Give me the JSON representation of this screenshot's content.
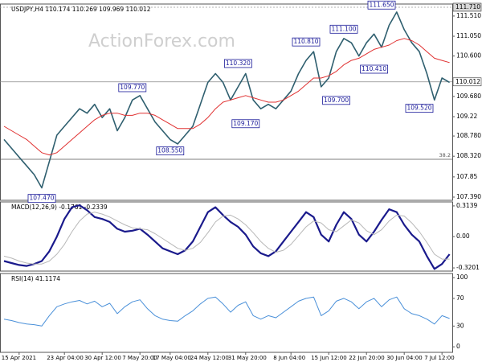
{
  "chart_data": [
    {
      "type": "line",
      "title": "USDJPY,H4  110.174 110.269 109.969 110.012",
      "watermark": "ActionForex.com",
      "categories": [
        null,
        null,
        "15 Apr 2021",
        null,
        null,
        null,
        null,
        null,
        "23 Apr 04:00",
        null,
        null,
        null,
        null,
        "30 Apr 12:00",
        null,
        null,
        null,
        null,
        "7 May 20:00",
        null,
        null,
        null,
        "17 May 04:00",
        null,
        null,
        null,
        null,
        "24 May 12:00",
        null,
        null,
        null,
        null,
        "31 May 20:00",
        null,
        null,
        null,
        null,
        null,
        "8 Jun 04:00",
        null,
        null,
        null,
        null,
        "15 Jun 12:00",
        null,
        null,
        null,
        null,
        "22 Jun 20:00",
        null,
        null,
        null,
        null,
        "30 Jun 04:00",
        null,
        null,
        null,
        null,
        "7 Jul 12:00",
        null
      ],
      "series": [
        {
          "color": "#2f5f6f",
          "values": [
            108.7,
            108.5,
            108.3,
            108.1,
            107.9,
            107.6,
            108.2,
            108.8,
            109.0,
            109.2,
            109.4,
            109.3,
            109.5,
            109.2,
            109.4,
            108.9,
            109.2,
            109.6,
            109.7,
            109.4,
            109.1,
            108.9,
            108.7,
            108.6,
            108.8,
            109.0,
            109.5,
            110.0,
            110.2,
            110.0,
            109.6,
            109.9,
            110.2,
            109.6,
            109.4,
            109.5,
            109.4,
            109.6,
            109.8,
            110.2,
            110.5,
            110.7,
            109.9,
            110.1,
            110.7,
            111.0,
            110.9,
            110.6,
            110.9,
            111.1,
            110.8,
            111.3,
            111.6,
            111.2,
            110.9,
            110.7,
            110.2,
            109.6,
            110.1,
            110.0
          ]
        },
        {
          "color": "#e03030",
          "values": [
            109.0,
            108.9,
            108.8,
            108.7,
            108.55,
            108.4,
            108.35,
            108.4,
            108.55,
            108.7,
            108.85,
            109.0,
            109.15,
            109.25,
            109.3,
            109.3,
            109.25,
            109.25,
            109.3,
            109.3,
            109.25,
            109.15,
            109.05,
            108.95,
            108.95,
            108.95,
            109.05,
            109.2,
            109.4,
            109.55,
            109.6,
            109.65,
            109.7,
            109.65,
            109.6,
            109.55,
            109.55,
            109.6,
            109.7,
            109.8,
            109.95,
            110.1,
            110.1,
            110.15,
            110.25,
            110.4,
            110.5,
            110.55,
            110.65,
            110.75,
            110.8,
            110.85,
            110.95,
            111.0,
            110.95,
            110.85,
            110.7,
            110.55,
            110.5,
            110.45
          ]
        }
      ],
      "ylim": [
        107.317,
        111.783
      ],
      "yticks": [
        {
          "value": 107.39,
          "label": "107.390"
        },
        107.85,
        {
          "value": 108.32,
          "label": "108.320"
        },
        {
          "value": 108.78,
          "label": "108.780"
        },
        109.22,
        {
          "value": 109.68,
          "label": "109.680"
        },
        {
          "value": 110.6,
          "label": "110.600"
        },
        {
          "value": 111.05,
          "label": "111.050"
        },
        {
          "value": 111.51,
          "label": "111.510"
        }
      ],
      "markers": [
        {
          "value": 111.71,
          "label": "111.710"
        },
        110.012
      ],
      "levels": [
        {
          "value": 108.25,
          "label": "38.2"
        }
      ],
      "annotations": [
        {
          "value": 107.47,
          "label": "107.470",
          "x": 5
        },
        {
          "value": 108.55,
          "label": "108.550",
          "x": 22
        },
        {
          "value": 109.77,
          "label": "109.770",
          "x": 17
        },
        {
          "value": 110.32,
          "label": "110.320",
          "x": 31
        },
        {
          "value": 109.17,
          "label": "109.170",
          "x": 32
        },
        {
          "value": 110.81,
          "label": "110.810",
          "x": 40
        },
        {
          "value": 111.1,
          "label": "111.100",
          "x": 45
        },
        {
          "value": 111.65,
          "label": "111.650",
          "x": 50
        },
        {
          "value": 109.7,
          "label": "109.700",
          "x": 44
        },
        {
          "value": 110.41,
          "label": "110.410",
          "x": 49
        },
        {
          "value": 109.52,
          "label": "109.520",
          "x": 55
        }
      ]
    },
    {
      "type": "line",
      "title": "MACD(12,26,9) -0.1761 -0.2339",
      "series": [
        {
          "color": "#1a1a8c",
          "values": [
            -0.25,
            -0.27,
            -0.29,
            -0.3,
            -0.28,
            -0.25,
            -0.15,
            0.0,
            0.18,
            0.3,
            0.32,
            0.27,
            0.2,
            0.18,
            0.15,
            0.08,
            0.05,
            0.06,
            0.08,
            0.02,
            -0.05,
            -0.12,
            -0.15,
            -0.18,
            -0.14,
            -0.05,
            0.1,
            0.25,
            0.3,
            0.22,
            0.15,
            0.1,
            0.02,
            -0.1,
            -0.17,
            -0.2,
            -0.15,
            -0.05,
            0.05,
            0.15,
            0.25,
            0.2,
            0.02,
            -0.05,
            0.12,
            0.25,
            0.18,
            0.02,
            -0.05,
            0.05,
            0.17,
            0.28,
            0.25,
            0.12,
            0.02,
            -0.05,
            -0.2,
            -0.33,
            -0.28,
            -0.18
          ]
        },
        {
          "color": "#b8b8b8",
          "values": [
            -0.2,
            -0.22,
            -0.25,
            -0.27,
            -0.28,
            -0.28,
            -0.25,
            -0.18,
            -0.08,
            0.05,
            0.16,
            0.23,
            0.25,
            0.23,
            0.2,
            0.16,
            0.12,
            0.09,
            0.08,
            0.07,
            0.03,
            -0.02,
            -0.07,
            -0.12,
            -0.14,
            -0.12,
            -0.06,
            0.04,
            0.15,
            0.21,
            0.22,
            0.18,
            0.12,
            0.04,
            -0.05,
            -0.12,
            -0.16,
            -0.14,
            -0.08,
            0.01,
            0.1,
            0.16,
            0.14,
            0.07,
            0.05,
            0.11,
            0.17,
            0.14,
            0.06,
            0.02,
            0.07,
            0.16,
            0.22,
            0.21,
            0.14,
            0.05,
            -0.06,
            -0.18,
            -0.23,
            -0.23
          ]
        }
      ],
      "ylim": [
        -0.3526,
        0.3545
      ],
      "yticks": [
        0.3139,
        {
          "value": 0,
          "label": "0.00"
        },
        -0.3201
      ]
    },
    {
      "type": "line",
      "title": "RSI(14) 41.1174",
      "series": [
        {
          "color": "#4a90d9",
          "values": [
            40,
            38,
            35,
            33,
            32,
            30,
            45,
            58,
            62,
            65,
            67,
            62,
            66,
            58,
            63,
            48,
            58,
            65,
            68,
            55,
            45,
            40,
            38,
            37,
            45,
            52,
            62,
            70,
            72,
            62,
            50,
            60,
            65,
            45,
            40,
            45,
            42,
            50,
            58,
            66,
            70,
            72,
            45,
            52,
            66,
            70,
            65,
            55,
            65,
            70,
            58,
            68,
            72,
            55,
            48,
            45,
            40,
            33,
            45,
            41
          ]
        }
      ],
      "ylim": [
        -8,
        106
      ],
      "yticks": [
        0,
        30,
        70,
        100
      ]
    }
  ]
}
